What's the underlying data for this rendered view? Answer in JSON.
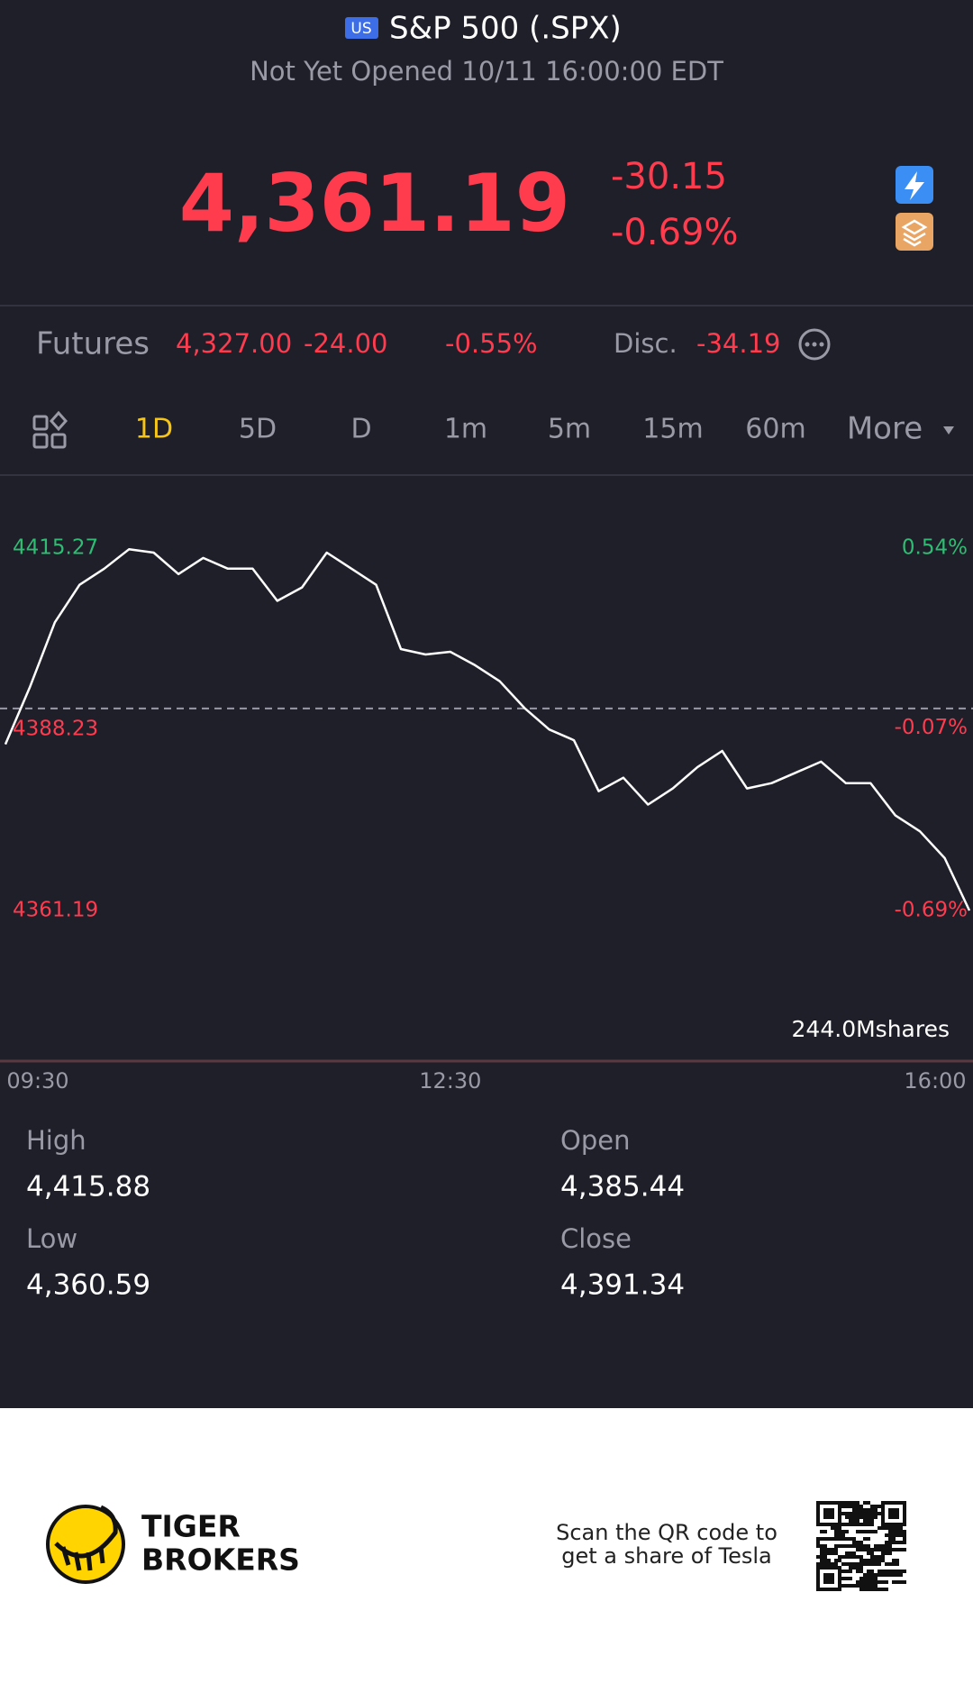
{
  "header": {
    "badge": "US",
    "title": "S&P 500 (.SPX)",
    "status": "Not Yet Opened 10/11 16:00:00 EDT"
  },
  "quote": {
    "price": "4,361.19",
    "change": "-30.15",
    "change_pct": "-0.69%"
  },
  "futures": {
    "label": "Futures",
    "price": "4,327.00",
    "change": "-24.00",
    "change_pct": "-0.55%",
    "disc_label": "Disc.",
    "disc_value": "-34.19"
  },
  "tabs": [
    "1D",
    "5D",
    "D",
    "1m",
    "5m",
    "15m",
    "60m",
    "More"
  ],
  "chart_data": {
    "type": "line",
    "color": "#ffffff",
    "categories": [
      "09:30",
      null,
      null,
      null,
      null,
      null,
      null,
      null,
      null,
      null,
      null,
      null,
      null,
      null,
      null,
      null,
      null,
      null,
      "12:30",
      null,
      null,
      null,
      null,
      null,
      null,
      null,
      null,
      null,
      null,
      null,
      null,
      null,
      null,
      null,
      null,
      null,
      null,
      null,
      null,
      "16:00"
    ],
    "values": [
      4386.0,
      4394.6,
      4404.2,
      4409.8,
      4412.2,
      4415.1,
      4414.6,
      4411.4,
      4413.8,
      4412.2,
      4412.2,
      4407.4,
      4409.4,
      4414.6,
      4412.2,
      4409.8,
      4400.2,
      4399.4,
      4399.8,
      4397.8,
      4395.4,
      4391.4,
      4388.2,
      4386.6,
      4379.0,
      4381.0,
      4377.0,
      4379.4,
      4382.6,
      4385.0,
      4379.4,
      4380.2,
      4381.8,
      4383.4,
      4380.2,
      4380.2,
      4375.4,
      4373.0,
      4369.0,
      4361.19
    ],
    "ylim": [
      4361.19,
      4415.27
    ],
    "yticks": [
      4415.27,
      4388.23,
      4361.19
    ],
    "y2lim": [
      -0.69,
      0.54
    ],
    "y2ticks": [
      {
        "value": 0.54,
        "label": "0.54%"
      },
      {
        "value": -0.07,
        "label": "-0.07%"
      },
      {
        "value": -0.69,
        "label": "-0.69%"
      }
    ],
    "reference_line": 4391.34,
    "volume_label": "244.0Mshares"
  },
  "stats": [
    {
      "label": "High",
      "value": "4,415.88"
    },
    {
      "label": "Open",
      "value": "4,385.44"
    },
    {
      "label": "Low",
      "value": "4,360.59"
    },
    {
      "label": "Close",
      "value": "4,391.34"
    }
  ],
  "footer": {
    "brand": [
      "TIGER",
      "BROKERS"
    ],
    "promo": [
      "Scan the QR code to",
      "get a share of Tesla"
    ]
  }
}
